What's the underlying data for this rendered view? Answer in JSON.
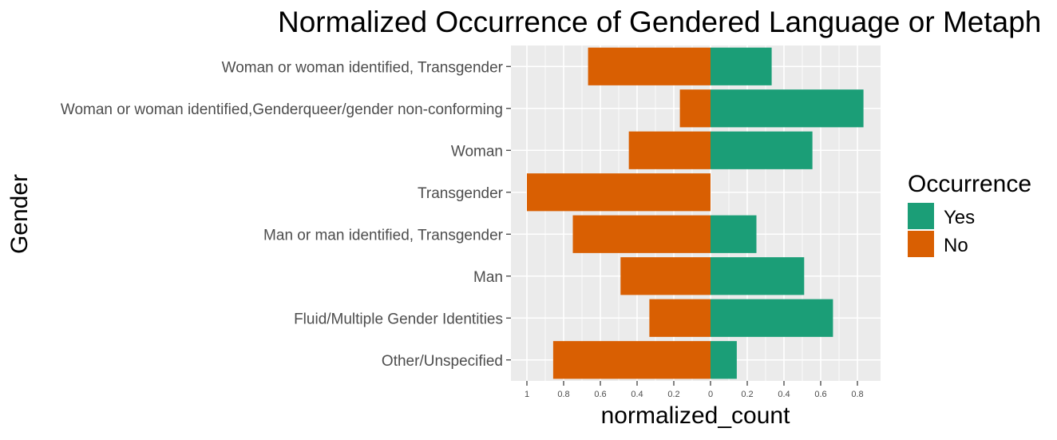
{
  "chart_data": {
    "type": "bar",
    "orientation": "horizontal-diverging",
    "title": "Normalized Occurrence of Gendered Language or Metaph",
    "xlabel": "normalized_count",
    "ylabel": "Gender",
    "categories": [
      "Woman or woman identified, Transgender",
      "Woman or woman identified,Genderqueer/gender non-conforming",
      "Woman",
      "Transgender",
      "Man or man identified, Transgender",
      "Man",
      "Fluid/Multiple Gender Identities",
      "Other/Unspecified"
    ],
    "series": [
      {
        "name": "Yes",
        "color": "#1b9e77",
        "values": [
          0.333,
          0.833,
          0.555,
          0.0,
          0.25,
          0.51,
          0.667,
          0.143
        ]
      },
      {
        "name": "No",
        "color": "#d95f02",
        "values": [
          0.667,
          0.167,
          0.445,
          1.0,
          0.75,
          0.49,
          0.333,
          0.857
        ]
      }
    ],
    "x_ticks": [
      {
        "value": -1,
        "label": "1"
      },
      {
        "value": -0.8,
        "label": "0.8"
      },
      {
        "value": -0.6,
        "label": "0.6"
      },
      {
        "value": -0.4,
        "label": "0.4"
      },
      {
        "value": -0.2,
        "label": "0.2"
      },
      {
        "value": 0,
        "label": "0"
      },
      {
        "value": 0.2,
        "label": "0.2"
      },
      {
        "value": 0.4,
        "label": "0.4"
      },
      {
        "value": 0.6,
        "label": "0.6"
      },
      {
        "value": 0.8,
        "label": "0.8"
      }
    ],
    "xlim": [
      -1.1,
      0.92
    ],
    "legend": {
      "title": "Occurrence",
      "position": "right"
    },
    "grid": true,
    "panel_background": "#ebebeb",
    "grid_color": "#ffffff"
  }
}
